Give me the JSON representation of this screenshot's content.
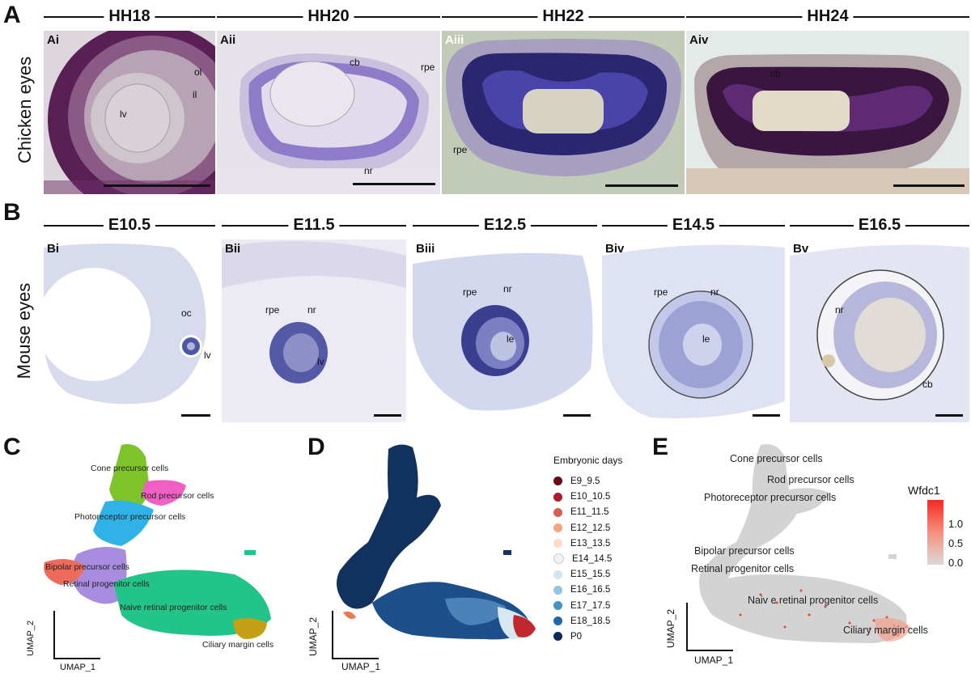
{
  "panels": {
    "A": "A",
    "B": "B",
    "C": "C",
    "D": "D",
    "E": "E"
  },
  "row_a": {
    "side_label": "Chicken eyes",
    "stages": [
      "HH18",
      "HH20",
      "HH22",
      "HH24"
    ],
    "subpanels": [
      "Ai",
      "Aii",
      "Aiii",
      "Aiv"
    ],
    "labels": {
      "ol": "ol",
      "il": "il",
      "lv": "lv",
      "cb": "cb",
      "rpe": "rpe",
      "nr": "nr",
      "rpe3": "rpe",
      "cb4": "cb"
    }
  },
  "row_b": {
    "side_label": "Mouse eyes",
    "stages": [
      "E10.5",
      "E11.5",
      "E12.5",
      "E14.5",
      "E16.5"
    ],
    "subpanels": [
      "Bi",
      "Bii",
      "Biii",
      "Biv",
      "Bv"
    ],
    "labels": {
      "oc": "oc",
      "lv1": "lv",
      "rpe2": "rpe",
      "nr2": "nr",
      "lv2": "lv",
      "rpe3": "rpe",
      "nr3": "nr",
      "le3": "le",
      "rpe4": "rpe",
      "nr4": "nr",
      "le4": "le",
      "nr5": "nr",
      "cb5": "cb"
    }
  },
  "umap_c": {
    "clusters": {
      "cone": "Cone precursor cells",
      "rod": "Rod precursor cells",
      "photo": "Photoreceptor precursor cells",
      "bipolar": "Bipolar precursor cells",
      "retinal": "Retinal progenitor cells",
      "naive": "Naive retinal progenitor cells",
      "ciliary": "Ciliary margin cells"
    },
    "xlabel": "UMAP_1",
    "ylabel": "UMAP_2",
    "colors": {
      "cone": "#7cc42a",
      "rod": "#ef5fc4",
      "photo": "#2fb3e6",
      "bipolar": "#ee6a5a",
      "retinal": "#a78ce0",
      "naive": "#22c48a",
      "ciliary": "#c5a017"
    }
  },
  "umap_d": {
    "legend_title": "Embryonic days",
    "legend": [
      {
        "name": "E9_9.5",
        "color": "#6b0a12"
      },
      {
        "name": "E10_10.5",
        "color": "#b2182b"
      },
      {
        "name": "E11_11.5",
        "color": "#d6604d"
      },
      {
        "name": "E12_12.5",
        "color": "#f4a582"
      },
      {
        "name": "E13_13.5",
        "color": "#fddbc7"
      },
      {
        "name": "E14_14.5",
        "color": "#f2f2f2"
      },
      {
        "name": "E15_15.5",
        "color": "#d1e5f0"
      },
      {
        "name": "E16_16.5",
        "color": "#92c5de"
      },
      {
        "name": "E17_17.5",
        "color": "#4393c3"
      },
      {
        "name": "E18_18.5",
        "color": "#2166ac"
      },
      {
        "name": "P0",
        "color": "#0b2a5c"
      }
    ],
    "xlabel": "UMAP_1",
    "ylabel": "UMAP_2"
  },
  "umap_e": {
    "clusters": {
      "cone": "Cone precursor cells",
      "rod": "Rod precursor cells",
      "photo": "Photoreceptor precursor cells",
      "bipolar": "Bipolar precursor cells",
      "retinal": "Retinal progenitor cells",
      "naive": "Naiv e retinal progenitor cells",
      "ciliary": "Ciliary margin cells"
    },
    "gene": "Wfdc1",
    "ticks": [
      "1.0",
      "0.5",
      "0.0"
    ],
    "xlabel": "UMAP_1",
    "ylabel": "UMAP_2"
  }
}
